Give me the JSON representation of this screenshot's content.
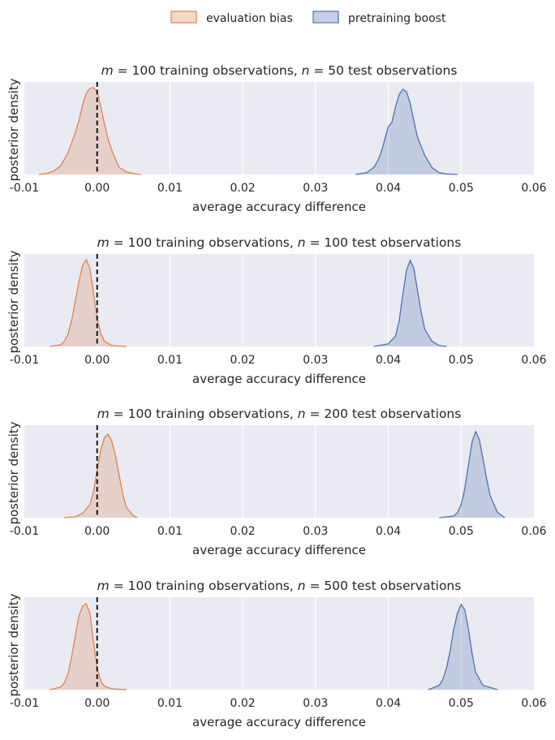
{
  "legend": {
    "location": "top-center",
    "items": [
      {
        "label": "evaluation bias",
        "color": "#dd8452",
        "fill": "#f8d9c4"
      },
      {
        "label": "pretraining boost",
        "color": "#4c72b0",
        "fill": "#c6cfe6"
      }
    ]
  },
  "style": {
    "plot_background": "#eaeaf2",
    "grid_color": "#ffffff",
    "reference_line_color": "#000000"
  },
  "chart_data": [
    {
      "type": "area",
      "title": "m = 100 training observations, n = 50 test observations",
      "title_parts": {
        "m_var": "m",
        "m_val": " = 100",
        "mid": " training observations, ",
        "n_var": "n",
        "n_val": " = 50",
        "tail": " test observations"
      },
      "xlabel": "average accuracy difference",
      "ylabel": "posterior density",
      "xlim": [
        -0.01,
        0.06
      ],
      "xticks": [
        "-0.01",
        "0.00",
        "0.01",
        "0.02",
        "0.03",
        "0.04",
        "0.05",
        "0.06"
      ],
      "grid": true,
      "reference_line_x": 0.0,
      "series": [
        {
          "name": "evaluation bias",
          "x": [
            -0.008,
            -0.007,
            -0.006,
            -0.005,
            -0.004,
            -0.003,
            -0.0025,
            -0.002,
            -0.0015,
            -0.001,
            -0.0005,
            0.0,
            0.0005,
            0.001,
            0.0015,
            0.002,
            0.0025,
            0.003,
            0.0035,
            0.004,
            0.005,
            0.006
          ],
          "density": [
            0.0,
            0.01,
            0.04,
            0.1,
            0.25,
            0.48,
            0.62,
            0.8,
            0.93,
            0.99,
            1.0,
            0.95,
            0.78,
            0.58,
            0.41,
            0.28,
            0.18,
            0.08,
            0.06,
            0.03,
            0.01,
            0.0
          ]
        },
        {
          "name": "pretraining boost",
          "x": [
            0.0355,
            0.037,
            0.038,
            0.0385,
            0.039,
            0.0395,
            0.04,
            0.0405,
            0.041,
            0.0415,
            0.042,
            0.0425,
            0.043,
            0.0435,
            0.044,
            0.045,
            0.046,
            0.047,
            0.048,
            0.0495
          ],
          "density": [
            0.0,
            0.02,
            0.08,
            0.15,
            0.25,
            0.4,
            0.55,
            0.6,
            0.78,
            0.92,
            0.98,
            0.95,
            0.82,
            0.62,
            0.43,
            0.22,
            0.08,
            0.02,
            0.005,
            0.0
          ]
        }
      ]
    },
    {
      "type": "area",
      "title": "m = 100 training observations, n = 100 test observations",
      "title_parts": {
        "m_var": "m",
        "m_val": " = 100",
        "mid": " training observations, ",
        "n_var": "n",
        "n_val": " = 100",
        "tail": " test observations"
      },
      "xlabel": "average accuracy difference",
      "ylabel": "posterior density",
      "xlim": [
        -0.01,
        0.06
      ],
      "xticks": [
        "-0.01",
        "0.00",
        "0.01",
        "0.02",
        "0.03",
        "0.04",
        "0.05",
        "0.06"
      ],
      "grid": true,
      "reference_line_x": 0.0,
      "series": [
        {
          "name": "evaluation bias",
          "x": [
            -0.0065,
            -0.005,
            -0.0045,
            -0.004,
            -0.0035,
            -0.003,
            -0.0025,
            -0.002,
            -0.0015,
            -0.001,
            -0.0005,
            0.0,
            0.0005,
            0.001,
            0.002,
            0.004
          ],
          "density": [
            0.0,
            0.02,
            0.06,
            0.14,
            0.3,
            0.52,
            0.75,
            0.93,
            1.0,
            0.9,
            0.62,
            0.32,
            0.15,
            0.06,
            0.01,
            0.0
          ]
        },
        {
          "name": "pretraining boost",
          "x": [
            0.038,
            0.04,
            0.041,
            0.0415,
            0.042,
            0.0425,
            0.043,
            0.0435,
            0.044,
            0.0445,
            0.045,
            0.046,
            0.047,
            0.048
          ],
          "density": [
            0.0,
            0.03,
            0.12,
            0.3,
            0.6,
            0.88,
            0.99,
            0.9,
            0.65,
            0.4,
            0.2,
            0.06,
            0.01,
            0.0
          ]
        }
      ]
    },
    {
      "type": "area",
      "title": "m = 100 training observations, n = 200 test observations",
      "title_parts": {
        "m_var": "m",
        "m_val": " = 100",
        "mid": " training observations, ",
        "n_var": "n",
        "n_val": " = 200",
        "tail": " test observations"
      },
      "xlabel": "average accuracy difference",
      "ylabel": "posterior density",
      "xlim": [
        -0.01,
        0.06
      ],
      "xticks": [
        "-0.01",
        "0.00",
        "0.01",
        "0.02",
        "0.03",
        "0.04",
        "0.05",
        "0.06"
      ],
      "grid": true,
      "reference_line_x": 0.0,
      "series": [
        {
          "name": "evaluation bias",
          "x": [
            -0.0045,
            -0.003,
            -0.002,
            -0.001,
            -0.0005,
            0.0,
            0.0005,
            0.001,
            0.0015,
            0.002,
            0.0025,
            0.003,
            0.0035,
            0.004,
            0.005,
            0.0055
          ],
          "density": [
            0.0,
            0.01,
            0.05,
            0.15,
            0.3,
            0.55,
            0.78,
            0.92,
            0.96,
            0.88,
            0.72,
            0.5,
            0.28,
            0.12,
            0.02,
            0.0
          ]
        },
        {
          "name": "pretraining boost",
          "x": [
            0.047,
            0.049,
            0.0495,
            0.05,
            0.0505,
            0.051,
            0.0515,
            0.052,
            0.0525,
            0.053,
            0.0535,
            0.054,
            0.055,
            0.056
          ],
          "density": [
            0.0,
            0.02,
            0.06,
            0.15,
            0.33,
            0.6,
            0.87,
            0.99,
            0.9,
            0.68,
            0.45,
            0.25,
            0.06,
            0.0
          ]
        }
      ]
    },
    {
      "type": "area",
      "title": "m = 100 training observations, n = 500 test observations",
      "title_parts": {
        "m_var": "m",
        "m_val": " = 100",
        "mid": " training observations, ",
        "n_var": "n",
        "n_val": " = 500",
        "tail": " test observations"
      },
      "xlabel": "average accuracy difference",
      "ylabel": "posterior density",
      "xlim": [
        -0.01,
        0.06
      ],
      "xticks": [
        "-0.01",
        "0.00",
        "0.01",
        "0.02",
        "0.03",
        "0.04",
        "0.05",
        "0.06"
      ],
      "grid": true,
      "reference_line_x": 0.0,
      "series": [
        {
          "name": "evaluation bias",
          "x": [
            -0.0065,
            -0.005,
            -0.0045,
            -0.004,
            -0.0035,
            -0.003,
            -0.0025,
            -0.002,
            -0.0015,
            -0.001,
            -0.0005,
            0.0,
            0.0005,
            0.001,
            0.002,
            0.004
          ],
          "density": [
            0.0,
            0.03,
            0.08,
            0.18,
            0.38,
            0.62,
            0.85,
            0.96,
            0.99,
            0.88,
            0.55,
            0.25,
            0.1,
            0.04,
            0.01,
            0.0
          ]
        },
        {
          "name": "pretraining boost",
          "x": [
            0.0455,
            0.047,
            0.0475,
            0.048,
            0.0485,
            0.049,
            0.0495,
            0.05,
            0.0505,
            0.051,
            0.0515,
            0.052,
            0.053,
            0.055
          ],
          "density": [
            0.0,
            0.05,
            0.12,
            0.25,
            0.45,
            0.7,
            0.88,
            0.98,
            0.92,
            0.7,
            0.42,
            0.2,
            0.05,
            0.0
          ]
        }
      ]
    }
  ]
}
